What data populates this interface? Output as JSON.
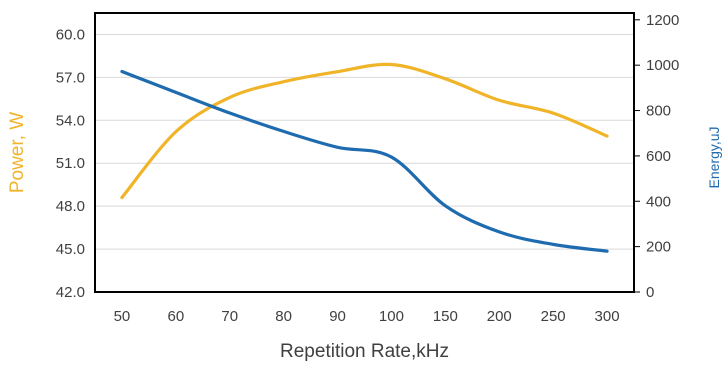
{
  "chart_data": {
    "type": "line",
    "xlabel": "Repetition Rate,kHz",
    "categories": [
      "50",
      "60",
      "70",
      "80",
      "90",
      "100",
      "150",
      "200",
      "250",
      "300"
    ],
    "y_left": {
      "label": "Power, W",
      "ylim": [
        42.0,
        61.5
      ],
      "ticks": [
        "42.0",
        "45.0",
        "48.0",
        "51.0",
        "54.0",
        "57.0",
        "60.0"
      ],
      "color": "#F0B429"
    },
    "y_right": {
      "label": "Energy,uJ",
      "ylim": [
        0,
        1230
      ],
      "ticks": [
        "0",
        "200",
        "400",
        "600",
        "800",
        "1000",
        "1200"
      ],
      "color": "#1F6BB0"
    },
    "series": [
      {
        "axis": "left",
        "color": "#F0B429",
        "values": [
          48.6,
          53.2,
          55.6,
          56.7,
          57.4,
          57.9,
          56.9,
          55.4,
          54.5,
          52.9
        ]
      },
      {
        "axis": "right",
        "color": "#1F6BB0",
        "values": [
          972,
          880,
          789,
          708,
          638,
          595,
          380,
          265,
          210,
          180
        ]
      }
    ],
    "grid": {
      "horizontal": true,
      "vertical": false
    },
    "legend": "none"
  }
}
